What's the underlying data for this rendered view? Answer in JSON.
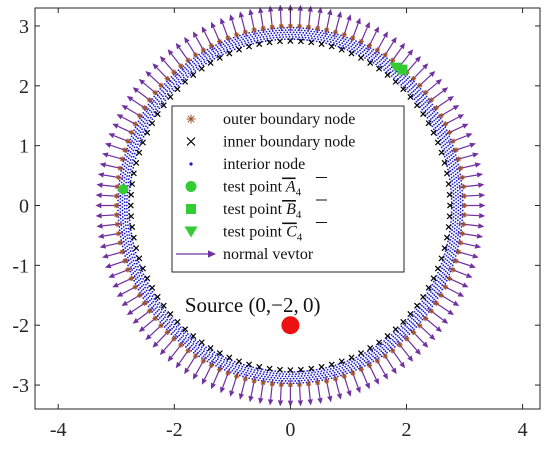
{
  "chart_data": {
    "type": "scatter",
    "xlim": [
      -4.4,
      4.3
    ],
    "ylim": [
      -3.4,
      3.3
    ],
    "grid": false,
    "legend_position": "center",
    "x_ticks": [
      -4,
      -2,
      0,
      2,
      4
    ],
    "y_ticks": [
      -3,
      -2,
      -1,
      0,
      1,
      2,
      3
    ],
    "x_tick_labels": [
      "-4",
      "-2",
      "0",
      "2",
      "4"
    ],
    "y_tick_labels": [
      "-3",
      "-2",
      "-1",
      "0",
      "1",
      "2",
      "3"
    ],
    "series": [
      {
        "name": "outer boundary node",
        "marker": "asterisk",
        "color": "#a0522d",
        "shape": "circle",
        "center": [
          0,
          0
        ],
        "radius": 3.0
      },
      {
        "name": "inner boundary node",
        "marker": "x",
        "color": "#000000",
        "shape": "circle",
        "center": [
          0,
          0
        ],
        "radius": 2.75
      },
      {
        "name": "interior node",
        "marker": "dot",
        "color": "#1a1acc",
        "shape": "annulus",
        "center": [
          0,
          0
        ],
        "radius_range": [
          2.78,
          2.97
        ]
      },
      {
        "name": "test point",
        "name_math": "A",
        "subscript": "4",
        "marker": "circle",
        "color": "#33cc33",
        "points": [
          [
            -2.88,
            0.27
          ]
        ]
      },
      {
        "name": "test point",
        "name_math": "B",
        "subscript": "4",
        "marker": "square",
        "color": "#33cc33",
        "points": [
          [
            1.93,
            2.27
          ]
        ]
      },
      {
        "name": "test point",
        "name_math": "C",
        "subscript": "4",
        "marker": "triangle-down",
        "color": "#33cc33",
        "points": [
          [
            1.81,
            2.32
          ]
        ]
      },
      {
        "name": "normal vevtor",
        "marker": "arrow",
        "color": "#7030a0",
        "shape": "circle",
        "center": [
          0,
          0
        ],
        "radius": 3.0,
        "count": 120
      }
    ],
    "annotations": [
      {
        "text": "Source",
        "math": "(0,−2, 0)",
        "point": [
          0,
          -2
        ]
      }
    ],
    "source_marker": {
      "point": [
        0,
        -2
      ],
      "color": "#ee1111"
    }
  }
}
